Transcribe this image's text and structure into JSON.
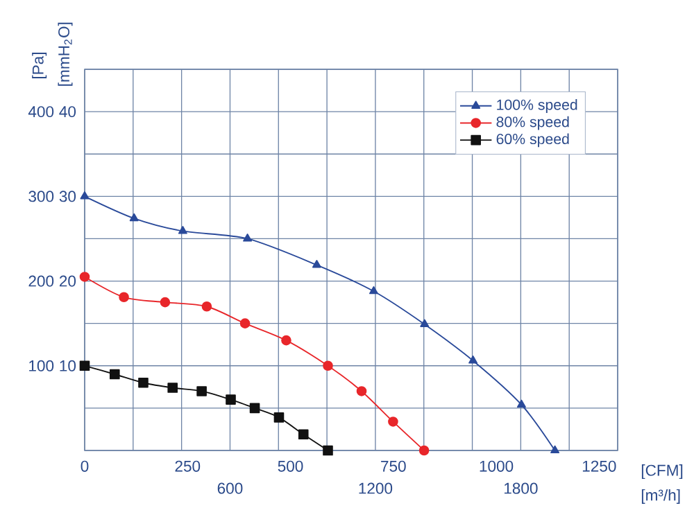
{
  "chart_data": {
    "type": "line",
    "xlabel": "[m³/h]",
    "x2label": "[CFM]",
    "ylabel": "[Pa]",
    "y2label": "[mmH$_{2}$O]",
    "xlim": [
      0,
      2200
    ],
    "xticks": [
      {
        "value": 0,
        "label": null
      },
      {
        "value": 200,
        "label": null
      },
      {
        "value": 400,
        "label": null
      },
      600,
      {
        "value": 800,
        "label": null
      },
      {
        "value": 1000,
        "label": null
      },
      1200,
      {
        "value": 1400,
        "label": null
      },
      {
        "value": 1600,
        "label": null
      },
      1800,
      {
        "value": 2000,
        "label": null
      },
      {
        "value": 2200,
        "label": null
      }
    ],
    "x2lim": [
      0,
      1295
    ],
    "x2ticks": [
      0,
      250,
      500,
      750,
      1000,
      1250
    ],
    "ylim": [
      0,
      450
    ],
    "yticks": [
      {
        "value": 0,
        "label": null
      },
      {
        "value": 50,
        "label": null
      },
      100,
      {
        "value": 150,
        "label": null
      },
      200,
      {
        "value": 250,
        "label": null
      },
      300,
      {
        "value": 350,
        "label": null
      },
      400,
      {
        "value": 450,
        "label": null
      }
    ],
    "y2lim": [
      0,
      45
    ],
    "y2ticks": [
      10,
      20,
      30,
      40
    ],
    "grid": true,
    "legend": "top right",
    "line_style": "solid",
    "series": [
      {
        "name": "100%  speed",
        "color": "#2a4a9a",
        "marker": "triangle",
        "x": [
          0,
          204,
          405,
          672,
          958,
          1193,
          1403,
          1603,
          1803,
          1941
        ],
        "values": [
          300,
          274,
          259,
          250,
          219,
          188,
          149,
          106,
          54,
          0
        ]
      },
      {
        "name": "80%  speed",
        "color": "#e8262a",
        "marker": "circle",
        "x": [
          0,
          162,
          332,
          504,
          662,
          832,
          1004,
          1143,
          1273,
          1401
        ],
        "values": [
          205,
          181,
          175,
          170,
          150,
          130,
          100,
          70,
          34,
          0
        ]
      },
      {
        "name": "60%  speed",
        "color": "#111111",
        "marker": "square",
        "x": [
          0,
          124,
          242,
          363,
          483,
          603,
          702,
          802,
          903,
          1004
        ],
        "values": [
          100,
          90,
          80,
          74,
          70,
          60,
          50,
          39,
          19,
          0
        ]
      }
    ]
  }
}
